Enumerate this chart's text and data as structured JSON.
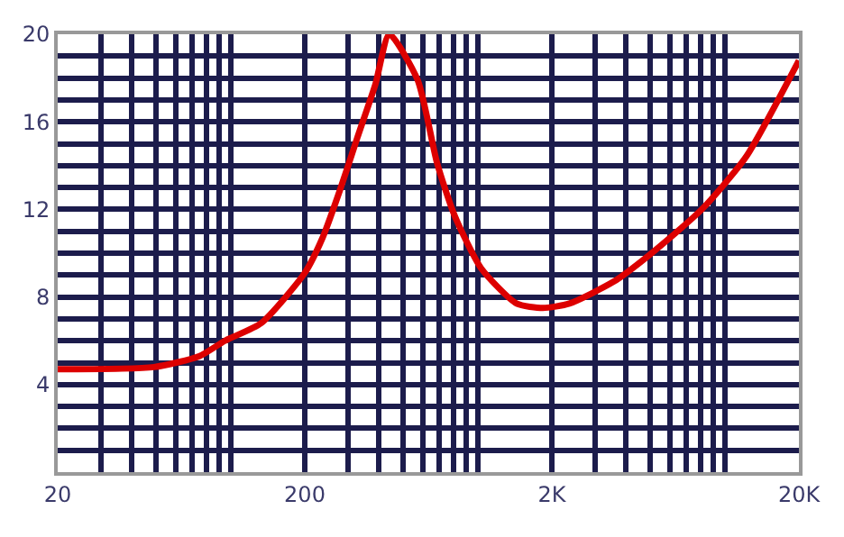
{
  "chart_data": {
    "type": "line",
    "log": "x",
    "grid": true,
    "xlim": [
      20,
      20000
    ],
    "ylim": [
      0,
      20
    ],
    "xticks": [
      20,
      200,
      {
        "value": 2000,
        "label": "2K"
      },
      {
        "value": 20000,
        "label": "20K"
      }
    ],
    "yticks": [
      4,
      8,
      12,
      16,
      20
    ],
    "x": [
      20,
      49,
      75,
      95,
      133,
      200,
      236,
      278,
      327,
      386,
      440,
      573,
      687,
      809,
      1036,
      1440,
      1840,
      2355,
      3557,
      4940,
      8090,
      12220,
      20000
    ],
    "series": [
      {
        "color": "#dd0000",
        "values": [
          4.7,
          4.8,
          5.3,
          6.0,
          6.8,
          9.1,
          10.7,
          12.9,
          15.3,
          17.7,
          20.0,
          17.9,
          14.1,
          11.7,
          9.3,
          7.7,
          7.5,
          7.7,
          8.7,
          9.9,
          12.0,
          14.4,
          18.8
        ]
      }
    ]
  }
}
